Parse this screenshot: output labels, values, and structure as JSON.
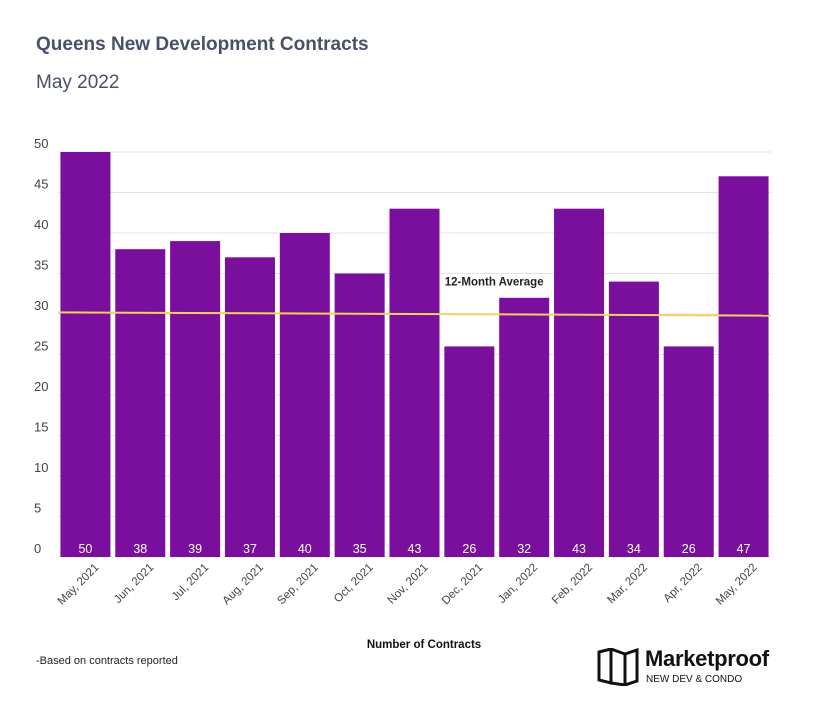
{
  "header": {
    "title": "Queens New Development Contracts",
    "subtitle": "May 2022"
  },
  "footnote": "-Based on contracts reported",
  "brand": {
    "name": "Marketproof",
    "tagline": "NEW DEV & CONDO"
  },
  "colors": {
    "bar": "#7a0f9e",
    "average_line": "#f5cf66",
    "title": "#4a4f6a",
    "grid": "#e3e3e3"
  },
  "chart_data": {
    "type": "bar",
    "title": "Queens New Development Contracts",
    "subtitle": "May 2022",
    "xlabel": "Number of Contracts",
    "ylabel": "",
    "categories": [
      "May, 2021",
      "Jun, 2021",
      "Jul, 2021",
      "Aug, 2021",
      "Sep, 2021",
      "Oct, 2021",
      "Nov, 2021",
      "Dec, 2021",
      "Jan, 2022",
      "Feb, 2022",
      "Mar, 2022",
      "Apr, 2022",
      "May, 2022"
    ],
    "values": [
      50,
      38,
      39,
      37,
      40,
      35,
      43,
      26,
      32,
      43,
      34,
      26,
      47
    ],
    "ylim": [
      0,
      50
    ],
    "yticks": [
      0,
      5,
      10,
      15,
      20,
      25,
      30,
      35,
      40,
      45,
      50
    ],
    "grid": true,
    "data_labels": true,
    "average_line": {
      "label": "12-Month Average",
      "start": 30.2,
      "end": 29.8
    }
  }
}
